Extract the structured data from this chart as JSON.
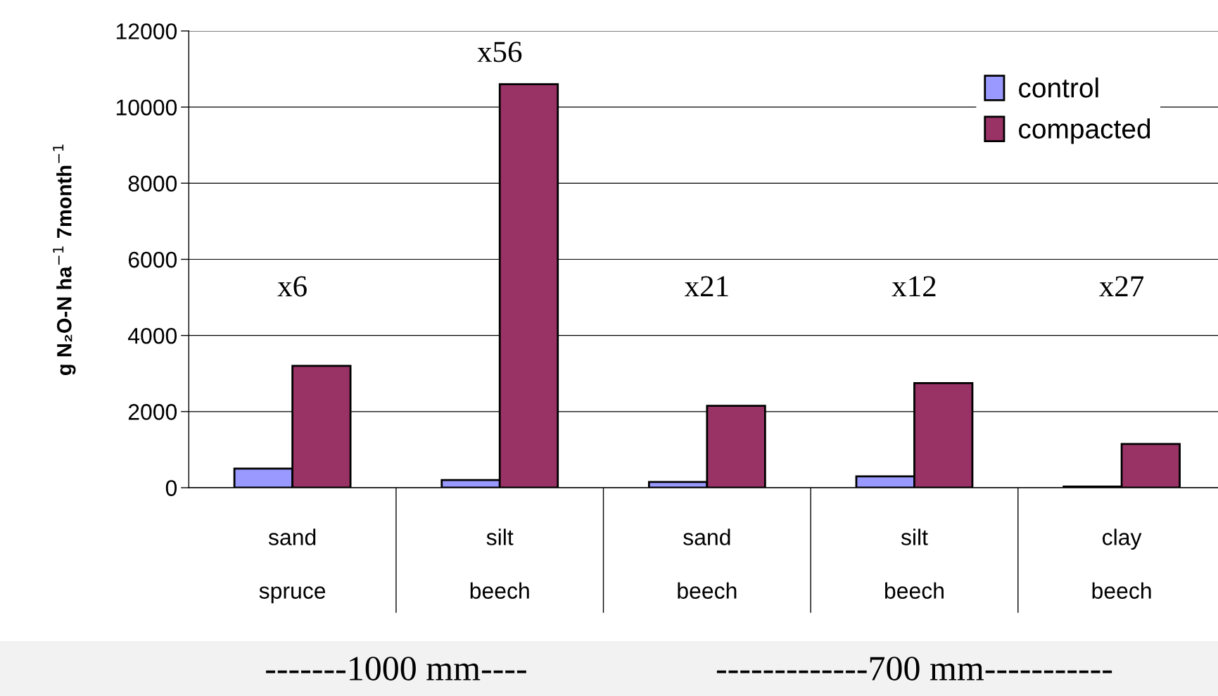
{
  "chart_data": {
    "type": "bar",
    "ylabel": "g N₂O-N ha$^{−1}$ 7month$^{−1}$",
    "categories": [
      "sand\nspruce",
      "silt\nbeech",
      "sand\nbeech",
      "silt\nbeech",
      "clay\nbeech"
    ],
    "series": [
      {
        "name": "control",
        "color": "#9999ff",
        "values": [
          500,
          200,
          150,
          300,
          30
        ]
      },
      {
        "name": "compacted",
        "color": "#993366",
        "values": [
          3200,
          10600,
          2150,
          2750,
          1150
        ]
      }
    ],
    "ylim": [
      0,
      12000
    ],
    "yticks": [
      0,
      2000,
      4000,
      6000,
      8000,
      10000,
      12000
    ],
    "grid": "y",
    "legend": "top right",
    "annotations": [
      "x6",
      "x56",
      "x21",
      "x12",
      "x27",
      "-------1000 mm----",
      "-------------700 mm-----------"
    ]
  }
}
